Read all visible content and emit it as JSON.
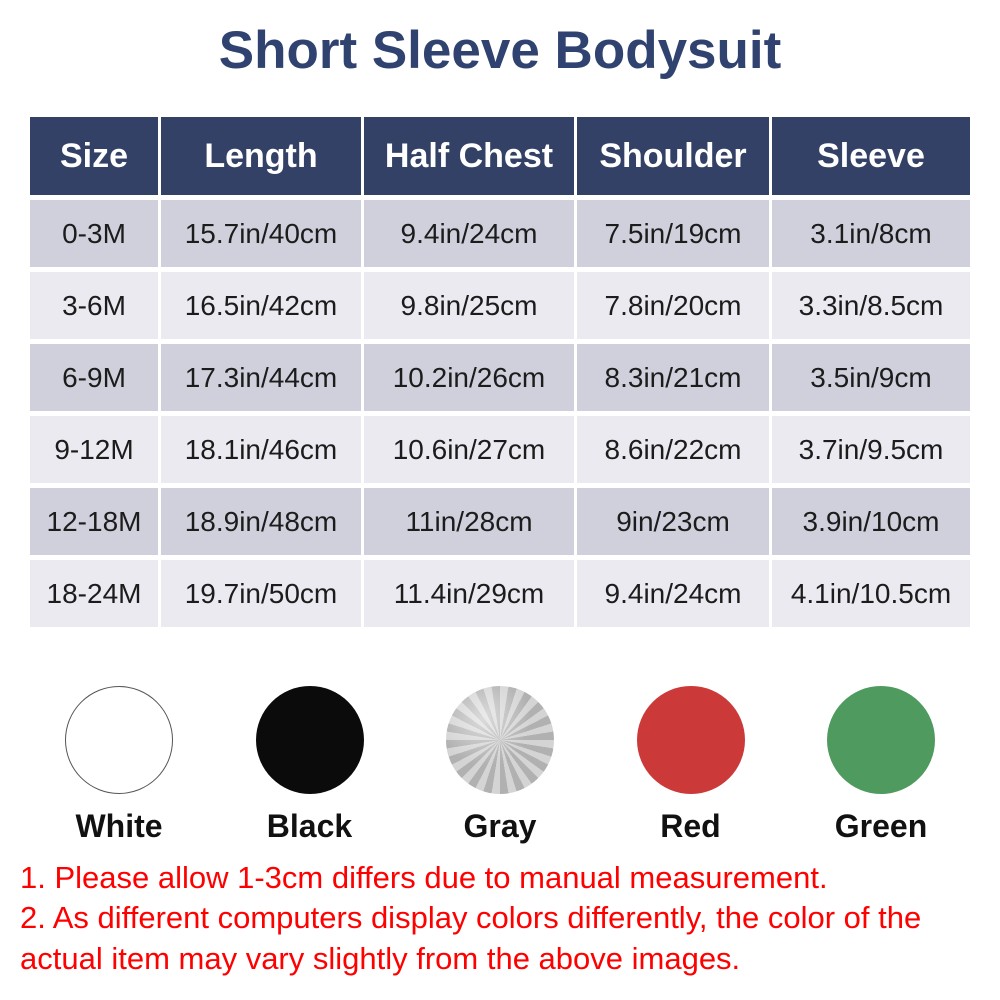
{
  "title": "Short Sleeve Bodysuit",
  "table": {
    "headers": [
      "Size",
      "Length",
      "Half Chest",
      "Shoulder",
      "Sleeve"
    ],
    "rows": [
      [
        "0-3M",
        "15.7in/40cm",
        "9.4in/24cm",
        "7.5in/19cm",
        "3.1in/8cm"
      ],
      [
        "3-6M",
        "16.5in/42cm",
        "9.8in/25cm",
        "7.8in/20cm",
        "3.3in/8.5cm"
      ],
      [
        "6-9M",
        "17.3in/44cm",
        "10.2in/26cm",
        "8.3in/21cm",
        "3.5in/9cm"
      ],
      [
        "9-12M",
        "18.1in/46cm",
        "10.6in/27cm",
        "8.6in/22cm",
        "3.7in/9.5cm"
      ],
      [
        "12-18M",
        "18.9in/48cm",
        "11in/28cm",
        "9in/23cm",
        "3.9in/10cm"
      ],
      [
        "18-24M",
        "19.7in/50cm",
        "11.4in/29cm",
        "9.4in/24cm",
        "4.1in/10.5cm"
      ]
    ]
  },
  "colors": [
    {
      "label": "White",
      "hex": "#ffffff"
    },
    {
      "label": "Black",
      "hex": "#0b0b0b"
    },
    {
      "label": "Gray",
      "hex": "#bdbdbd"
    },
    {
      "label": "Red",
      "hex": "#cb3a38"
    },
    {
      "label": "Green",
      "hex": "#4f9a5f"
    }
  ],
  "notes": [
    "1. Please allow 1-3cm differs due to manual measurement.",
    "2. As different computers display colors differently, the color of the actual item may vary slightly from the above images."
  ],
  "theme": {
    "title_color": "#30426f",
    "header_bg": "#344166",
    "row_odd_bg": "#d0d0dd",
    "row_even_bg": "#eaeaf0",
    "note_color": "#ff0000"
  }
}
